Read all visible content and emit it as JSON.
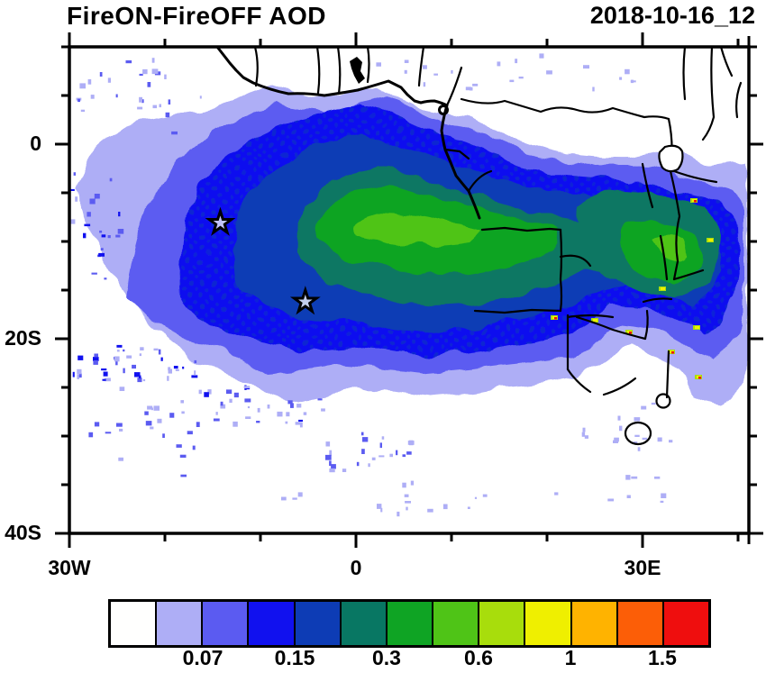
{
  "header": {
    "title": "FireON-FireOFF AOD",
    "timestamp": "2018-10-16_12"
  },
  "axes": {
    "x": {
      "ticks": [
        {
          "deg": -30,
          "label": "30W"
        },
        {
          "deg": -20
        },
        {
          "deg": -10
        },
        {
          "deg": 0,
          "label": "0"
        },
        {
          "deg": 10
        },
        {
          "deg": 20
        },
        {
          "deg": 30,
          "label": "30E"
        },
        {
          "deg": 40
        }
      ]
    },
    "y": {
      "ticks": [
        {
          "deg": 10
        },
        {
          "deg": 5
        },
        {
          "deg": 0,
          "label": "0"
        },
        {
          "deg": -5
        },
        {
          "deg": -10
        },
        {
          "deg": -15
        },
        {
          "deg": -20,
          "label": "20S"
        },
        {
          "deg": -25
        },
        {
          "deg": -30
        },
        {
          "deg": -35
        },
        {
          "deg": -40,
          "label": "40S"
        }
      ]
    }
  },
  "colorbar": {
    "colors": [
      "#FFFFFE",
      "#AEAEF6",
      "#5B5BF1",
      "#1111EF",
      "#0D3CB5",
      "#087763",
      "#0FA424",
      "#4FC417",
      "#A8DD0C",
      "#EFEF00",
      "#FFB300",
      "#FC5E07",
      "#EF0E0E"
    ],
    "labels": [
      {
        "boundary_index": 2,
        "text": "0.07"
      },
      {
        "boundary_index": 4,
        "text": "0.15"
      },
      {
        "boundary_index": 6,
        "text": "0.3"
      },
      {
        "boundary_index": 8,
        "text": "0.6"
      },
      {
        "boundary_index": 10,
        "text": "1"
      },
      {
        "boundary_index": 12,
        "text": "1.5"
      }
    ]
  },
  "markers": [
    {
      "shape": "star",
      "lon": -14.2,
      "lat": -8.1
    },
    {
      "shape": "star",
      "lon": -5.3,
      "lat": -16.2
    }
  ],
  "chart_data": {
    "type": "heatmap",
    "title": "FireON-FireOFF AOD",
    "subtitle": "2018-10-16_12",
    "variable": "AOD difference (FireON minus FireOFF)",
    "x_tick_labels": [
      "30W",
      "0",
      "30E"
    ],
    "y_tick_labels": [
      "0",
      "20S",
      "40S"
    ],
    "lon_range_deg": [
      -30,
      41
    ],
    "lat_range_deg": [
      -40,
      10
    ],
    "grid": false,
    "legend_position": "bottom",
    "colorbar_labeled_boundaries": [
      0.07,
      0.15,
      0.3,
      0.6,
      1,
      1.5
    ],
    "palette": [
      "#FFFFFE",
      "#AEAEF6",
      "#5B5BF1",
      "#1111EF",
      "#0D3CB5",
      "#087763",
      "#0FA424",
      "#4FC417",
      "#A8DD0C",
      "#EFEF00",
      "#FFB300",
      "#FC5E07",
      "#EF0E0E"
    ],
    "markers": [
      {
        "shape": "star",
        "lon": -14.2,
        "lat": -8.1
      },
      {
        "shape": "star",
        "lon": -5.3,
        "lat": -16.2
      }
    ],
    "field_summary": "Positive AOD-difference plume from southern-African biomass burning extending west over the South Atlantic between roughly the equator and 25S; core values 0.3-0.8 (green) along 5-12S and over Angola/DRC/Zambia/Zimbabwe/Mozambique, with isolated hotspots above 1; near-zero difference over the Sahel band, the South African interior and the far southern Atlantic."
  }
}
